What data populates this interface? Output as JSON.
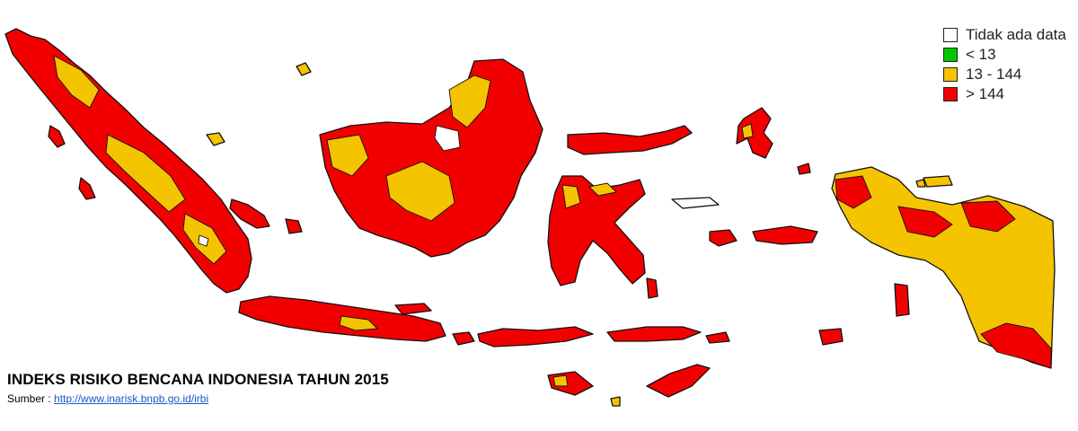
{
  "title": "INDEKS RISIKO BENCANA INDONESIA TAHUN 2015",
  "source": {
    "label": "Sumber : ",
    "link": "http://www.inarisk.bnpb.go.id/irbi"
  },
  "legend": [
    {
      "label": "Tidak ada data",
      "color": "#ffffff"
    },
    {
      "label": "< 13",
      "color": "#00c800"
    },
    {
      "label": "13 - 144",
      "color": "#f5c400"
    },
    {
      "label": "> 144",
      "color": "#f20000"
    }
  ],
  "colors": {
    "high": "#f20000",
    "medium": "#f5c400",
    "low": "#00c800",
    "nodata": "#ffffff",
    "outline": "#111111"
  }
}
